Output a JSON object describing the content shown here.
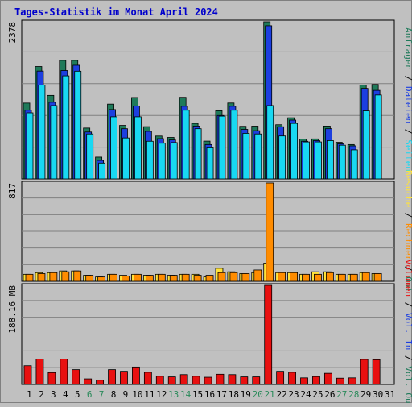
{
  "title": "Tages-Statistik im Monat April 2024",
  "colors": {
    "background": "#c0c0c0",
    "title": "#0000cc",
    "grid": "#808080",
    "anfragen": "#1f7a5a",
    "dateien": "#1c3fe0",
    "seiten": "#18d8f2",
    "besuche": "#ffe23a",
    "rechner": "#ff8c00",
    "volumen": "#e81010",
    "weekday": "#000000",
    "weekend": "#2a8a5a"
  },
  "chart_data": [
    {
      "type": "bar",
      "name": "hits-panel",
      "max_label": "2378",
      "ylim": [
        0,
        2378
      ],
      "right_legend": [
        {
          "text": "Anfragen",
          "color_key": "anfragen"
        },
        {
          "text": " / ",
          "color_key": "weekday"
        },
        {
          "text": "Dateien",
          "color_key": "dateien"
        },
        {
          "text": " / ",
          "color_key": "weekday"
        },
        {
          "text": "Seiten",
          "color_key": "seiten"
        }
      ],
      "categories": [
        "1",
        "2",
        "3",
        "4",
        "5",
        "6",
        "7",
        "8",
        "9",
        "10",
        "11",
        "12",
        "13",
        "14",
        "15",
        "16",
        "17",
        "18",
        "19",
        "20",
        "21",
        "22",
        "23",
        "24",
        "25",
        "26",
        "27",
        "28",
        "29",
        "30"
      ],
      "series": [
        {
          "name": "Anfragen",
          "values": [
            1148,
            1701,
            1264,
            1794,
            1794,
            770,
            330,
            1132,
            810,
            1232,
            791,
            649,
            628,
            1235,
            840,
            572,
            1032,
            1149,
            796,
            799,
            2378,
            820,
            925,
            603,
            606,
            800,
            554,
            520,
            1420,
            1430
          ]
        },
        {
          "name": "Dateien",
          "values": [
            1040,
            1632,
            1160,
            1640,
            1720,
            710,
            280,
            1050,
            760,
            1105,
            720,
            610,
            590,
            1100,
            800,
            520,
            960,
            1100,
            750,
            730,
            2318,
            790,
            890,
            570,
            580,
            760,
            530,
            500,
            1370,
            1340
          ]
        },
        {
          "name": "Seiten",
          "values": [
            1000,
            1420,
            1110,
            1560,
            1630,
            680,
            240,
            940,
            620,
            940,
            570,
            540,
            550,
            1040,
            760,
            470,
            950,
            1040,
            690,
            680,
            1110,
            650,
            840,
            560,
            560,
            580,
            510,
            440,
            1030,
            1270
          ]
        }
      ]
    },
    {
      "type": "bar",
      "name": "visits-panel",
      "max_label": "817",
      "ylim": [
        0,
        817
      ],
      "right_legend": [
        {
          "text": "Besuche",
          "color_key": "besuche"
        },
        {
          "text": " / ",
          "color_key": "weekday"
        },
        {
          "text": "Rechner",
          "color_key": "rechner"
        },
        {
          "text": " / ",
          "color_key": "weekday"
        },
        {
          "text": "Out",
          "color_key": "anfragen"
        }
      ],
      "categories": [
        "1",
        "2",
        "3",
        "4",
        "5",
        "6",
        "7",
        "8",
        "9",
        "10",
        "11",
        "12",
        "13",
        "14",
        "15",
        "16",
        "17",
        "18",
        "19",
        "20",
        "21",
        "22",
        "23",
        "24",
        "25",
        "26",
        "27",
        "28",
        "29",
        "30"
      ],
      "series": [
        {
          "name": "Besuche",
          "values": [
            58,
            72,
            72,
            86,
            86,
            50,
            36,
            58,
            50,
            58,
            50,
            58,
            50,
            58,
            58,
            36,
            108,
            79,
            64,
            72,
            151,
            72,
            72,
            58,
            79,
            79,
            58,
            58,
            72,
            64
          ]
        },
        {
          "name": "Rechner",
          "values": [
            58,
            64,
            72,
            79,
            86,
            50,
            36,
            58,
            43,
            58,
            50,
            58,
            50,
            58,
            50,
            50,
            72,
            72,
            64,
            94,
            817,
            72,
            72,
            58,
            58,
            72,
            58,
            58,
            72,
            64
          ]
        }
      ]
    },
    {
      "type": "bar",
      "name": "volume-panel",
      "max_label": "188.16 MB",
      "ylim": [
        0,
        188.16
      ],
      "right_legend": [
        {
          "text": "Volumen",
          "color_key": "volumen"
        },
        {
          "text": " / ",
          "color_key": "weekday"
        },
        {
          "text": "Vol. In",
          "color_key": "dateien"
        },
        {
          "text": " / ",
          "color_key": "weekday"
        },
        {
          "text": "Vol. Out",
          "color_key": "anfragen"
        }
      ],
      "categories": [
        "1",
        "2",
        "3",
        "4",
        "5",
        "6",
        "7",
        "8",
        "9",
        "10",
        "11",
        "12",
        "13",
        "14",
        "15",
        "16",
        "17",
        "18",
        "19",
        "20",
        "21",
        "22",
        "23",
        "24",
        "25",
        "26",
        "27",
        "28",
        "29",
        "30"
      ],
      "series": [
        {
          "name": "Volumen",
          "values": [
            35.6,
            48.1,
            22.5,
            48.1,
            28.1,
            10.6,
            8.1,
            28.1,
            25.0,
            33.1,
            23.1,
            15.6,
            14.4,
            18.7,
            15.6,
            13.7,
            19.4,
            18.7,
            14.4,
            14.4,
            188.16,
            25.0,
            23.1,
            12.5,
            15.0,
            21.2,
            11.9,
            12.5,
            47.5,
            46.9
          ]
        }
      ]
    }
  ],
  "x_axis": {
    "days": [
      {
        "label": "1",
        "weekend": false
      },
      {
        "label": "2",
        "weekend": false
      },
      {
        "label": "3",
        "weekend": false
      },
      {
        "label": "4",
        "weekend": false
      },
      {
        "label": "5",
        "weekend": false
      },
      {
        "label": "6",
        "weekend": true
      },
      {
        "label": "7",
        "weekend": true
      },
      {
        "label": "8",
        "weekend": false
      },
      {
        "label": "9",
        "weekend": false
      },
      {
        "label": "10",
        "weekend": false
      },
      {
        "label": "11",
        "weekend": false
      },
      {
        "label": "12",
        "weekend": false
      },
      {
        "label": "13",
        "weekend": true
      },
      {
        "label": "14",
        "weekend": true
      },
      {
        "label": "15",
        "weekend": false
      },
      {
        "label": "16",
        "weekend": false
      },
      {
        "label": "17",
        "weekend": false
      },
      {
        "label": "18",
        "weekend": false
      },
      {
        "label": "19",
        "weekend": false
      },
      {
        "label": "20",
        "weekend": true
      },
      {
        "label": "21",
        "weekend": true
      },
      {
        "label": "22",
        "weekend": false
      },
      {
        "label": "23",
        "weekend": false
      },
      {
        "label": "24",
        "weekend": false
      },
      {
        "label": "25",
        "weekend": false
      },
      {
        "label": "26",
        "weekend": false
      },
      {
        "label": "27",
        "weekend": true
      },
      {
        "label": "28",
        "weekend": true
      },
      {
        "label": "29",
        "weekend": false
      },
      {
        "label": "30",
        "weekend": false
      },
      {
        "label": "31",
        "weekend": false
      }
    ]
  }
}
